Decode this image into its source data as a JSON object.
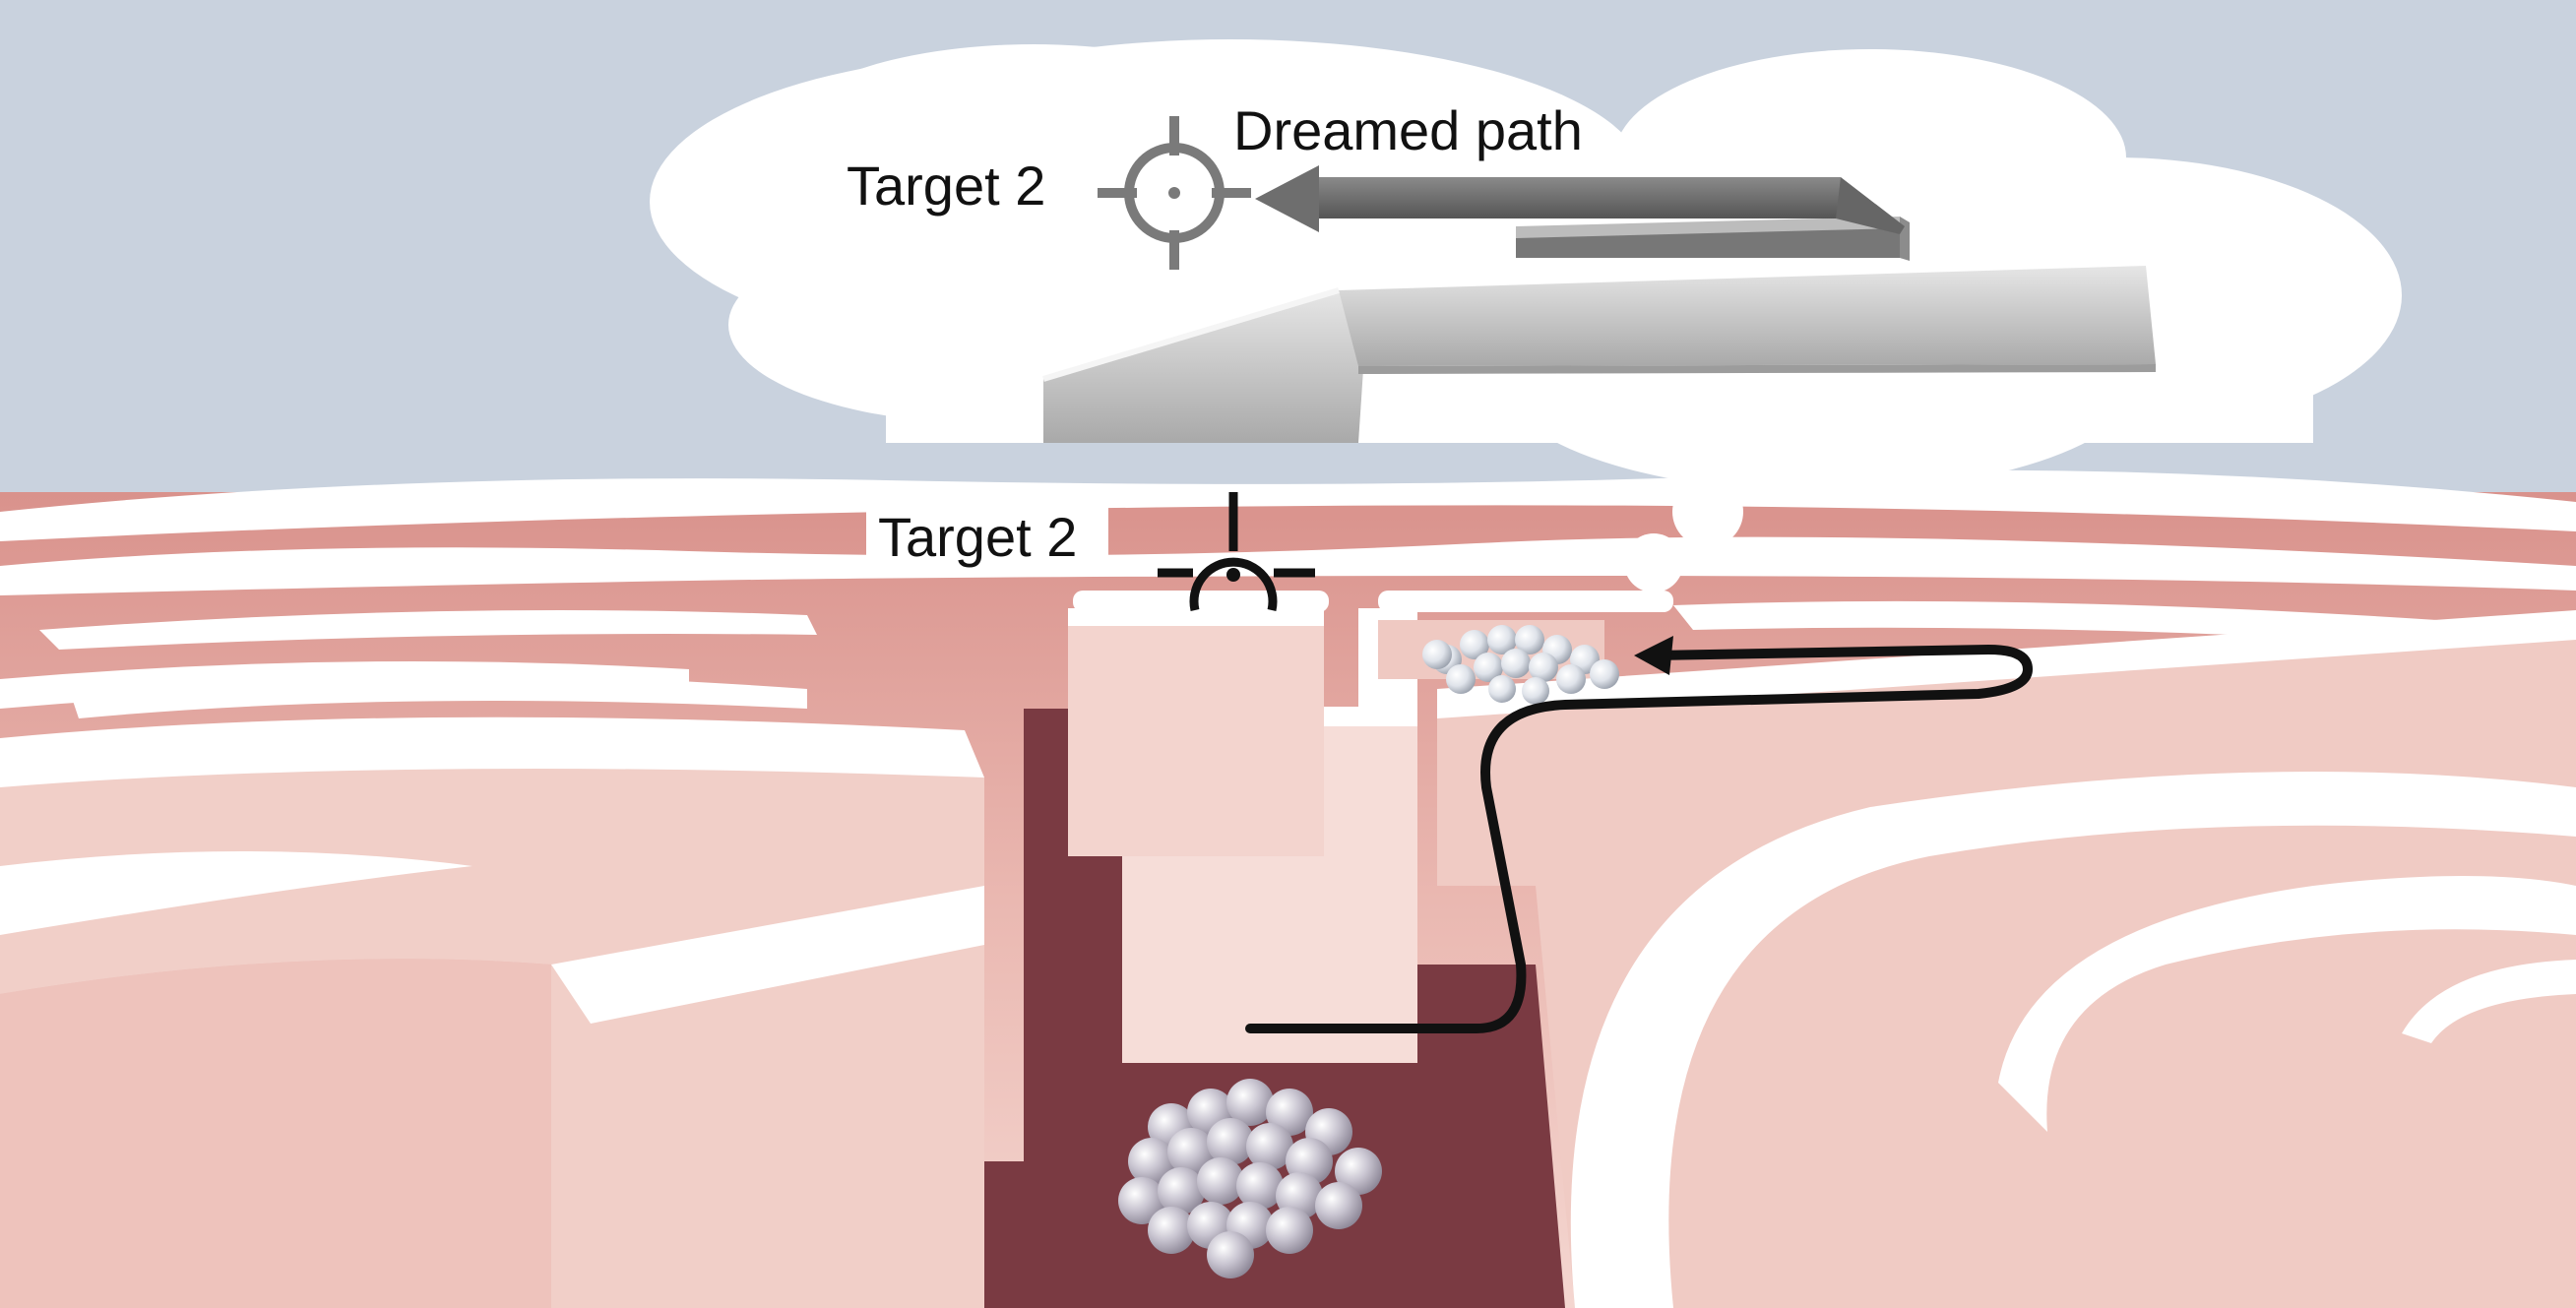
{
  "labels": {
    "dream_target": "Target 2",
    "dreamed_path": "Dreamed path",
    "maze_target": "Target 2"
  },
  "colors": {
    "sky": "#c9d2de",
    "wall_face": "#f1cfc8",
    "wall_shadow": "#dd9f98",
    "wall_top": "#ffffff",
    "floor": "#7a3a42",
    "path": "#111111",
    "dream_arrow": "#6e6e6e",
    "dream_ribbon": "#c8c8c8",
    "cell_cluster": "#b9b3bf"
  },
  "icons": {
    "dream_target": "crosshair-icon",
    "maze_target": "crosshair-icon"
  }
}
